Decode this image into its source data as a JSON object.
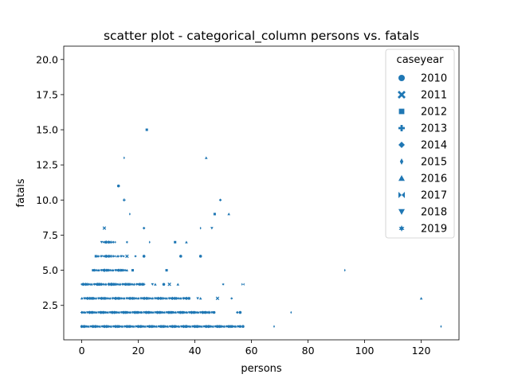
{
  "chart_data": {
    "type": "scatter",
    "title": "scatter plot - categorical_column persons vs. fatals",
    "xlabel": "persons",
    "ylabel": "fatals",
    "xlim": [
      -6.35,
      133.35
    ],
    "ylim": [
      0.05,
      20.95
    ],
    "xticks": [
      0,
      20,
      40,
      60,
      80,
      100,
      120
    ],
    "yticks": [
      2.5,
      5.0,
      7.5,
      10.0,
      12.5,
      15.0,
      17.5,
      20.0
    ],
    "xtick_labels": [
      "0",
      "20",
      "40",
      "60",
      "80",
      "100",
      "120"
    ],
    "ytick_labels": [
      "2.5",
      "5.0",
      "7.5",
      "10.0",
      "12.5",
      "15.0",
      "17.5",
      "20.0"
    ],
    "grid": false,
    "legend_position": "top-right",
    "marker_color": "#1f77b4",
    "legend": {
      "title": "caseyear",
      "entries": [
        {
          "label": "2010",
          "marker": "circle"
        },
        {
          "label": "2011",
          "marker": "x"
        },
        {
          "label": "2012",
          "marker": "square"
        },
        {
          "label": "2013",
          "marker": "plus"
        },
        {
          "label": "2014",
          "marker": "diamond"
        },
        {
          "label": "2015",
          "marker": "thin-diamond"
        },
        {
          "label": "2016",
          "marker": "triangle-up"
        },
        {
          "label": "2017",
          "marker": "bowtie"
        },
        {
          "label": "2018",
          "marker": "triangle-down"
        },
        {
          "label": "2019",
          "marker": "star"
        }
      ]
    },
    "series": [
      {
        "name": "2010",
        "points": [
          [
            13,
            11
          ],
          [
            22,
            6
          ],
          [
            29,
            4
          ],
          [
            35,
            6
          ],
          [
            42,
            6
          ],
          [
            56,
            2
          ],
          [
            57,
            1
          ],
          [
            8,
            5
          ],
          [
            4,
            3
          ]
        ]
      },
      {
        "name": "2011",
        "points": [
          [
            8,
            8
          ],
          [
            16,
            6
          ],
          [
            31,
            4
          ],
          [
            48,
            3
          ],
          [
            10,
            4
          ]
        ]
      },
      {
        "name": "2012",
        "points": [
          [
            23,
            15
          ],
          [
            33,
            7
          ],
          [
            47,
            9
          ],
          [
            5,
            6
          ],
          [
            30,
            5
          ],
          [
            18,
            5
          ]
        ]
      },
      {
        "name": "2013",
        "points": [
          [
            15,
            10
          ],
          [
            45,
            2
          ],
          [
            37,
            1
          ],
          [
            12,
            3
          ],
          [
            6,
            4
          ]
        ]
      },
      {
        "name": "2014",
        "points": [
          [
            49,
            10
          ],
          [
            36,
            3
          ],
          [
            55,
            2
          ],
          [
            22,
            8
          ],
          [
            11,
            4
          ]
        ]
      },
      {
        "name": "2015",
        "points": [
          [
            15,
            13
          ],
          [
            17,
            9
          ],
          [
            93,
            5
          ],
          [
            74,
            2
          ],
          [
            127,
            1
          ],
          [
            68,
            1
          ],
          [
            42,
            8
          ],
          [
            24,
            7
          ]
        ]
      },
      {
        "name": "2016",
        "points": [
          [
            44,
            13
          ],
          [
            52,
            9
          ],
          [
            37,
            7
          ],
          [
            120,
            3
          ],
          [
            34,
            4
          ],
          [
            26,
            4
          ],
          [
            42,
            3
          ]
        ]
      },
      {
        "name": "2017",
        "points": [
          [
            57,
            4
          ],
          [
            40,
            1
          ],
          [
            48,
            1
          ],
          [
            9,
            6
          ],
          [
            14,
            4
          ]
        ]
      },
      {
        "name": "2018",
        "points": [
          [
            46,
            8
          ],
          [
            41,
            3
          ],
          [
            25,
            4
          ],
          [
            45,
            1
          ],
          [
            32,
            2
          ]
        ]
      },
      {
        "name": "2019",
        "points": [
          [
            19,
            6
          ],
          [
            16,
            7
          ],
          [
            21,
            2
          ],
          [
            44,
            1
          ],
          [
            50,
            4
          ],
          [
            53,
            3
          ]
        ]
      }
    ],
    "dense_rows": [
      {
        "y": 1,
        "x_range": [
          0,
          56
        ],
        "step": 0.4
      },
      {
        "y": 2,
        "x_range": [
          0,
          47
        ],
        "step": 0.4
      },
      {
        "y": 3,
        "x_range": [
          0,
          38
        ],
        "step": 0.5
      },
      {
        "y": 4,
        "x_range": [
          0,
          22
        ],
        "step": 0.5
      },
      {
        "y": 5,
        "x_range": [
          4,
          16
        ],
        "step": 0.5
      },
      {
        "y": 6,
        "x_range": [
          5,
          15
        ],
        "step": 0.7
      },
      {
        "y": 7,
        "x_range": [
          7,
          12
        ],
        "step": 0.7
      }
    ]
  }
}
